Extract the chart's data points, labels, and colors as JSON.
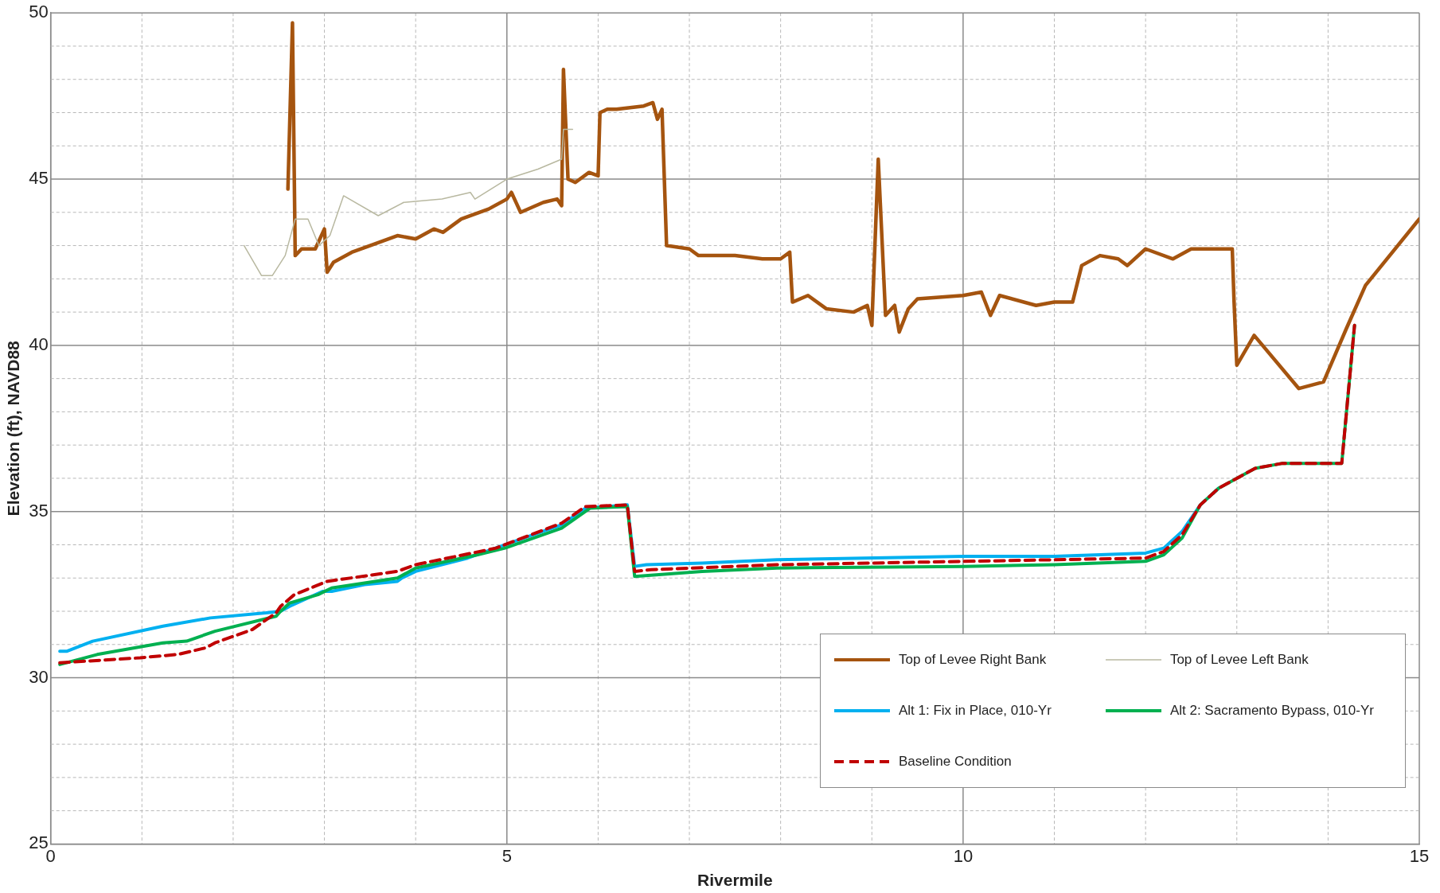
{
  "chart_data": {
    "type": "line",
    "xlabel": "Rivermile",
    "ylabel": "Elevation (ft), NAVD88",
    "xlim": [
      0,
      15
    ],
    "ylim": [
      25,
      50
    ],
    "xticks": [
      0,
      {
        "value": 1,
        "label": null
      },
      {
        "value": 2,
        "label": null
      },
      {
        "value": 3,
        "label": null
      },
      {
        "value": 4,
        "label": null
      },
      5,
      {
        "value": 6,
        "label": null
      },
      {
        "value": 7,
        "label": null
      },
      {
        "value": 8,
        "label": null
      },
      {
        "value": 9,
        "label": null
      },
      10,
      {
        "value": 11,
        "label": null
      },
      {
        "value": 12,
        "label": null
      },
      {
        "value": 13,
        "label": null
      },
      {
        "value": 14,
        "label": null
      },
      15
    ],
    "yticks": [
      25,
      {
        "value": 26,
        "label": null
      },
      {
        "value": 27,
        "label": null
      },
      {
        "value": 28,
        "label": null
      },
      {
        "value": 29,
        "label": null
      },
      30,
      {
        "value": 31,
        "label": null
      },
      {
        "value": 32,
        "label": null
      },
      {
        "value": 33,
        "label": null
      },
      {
        "value": 34,
        "label": null
      },
      35,
      {
        "value": 36,
        "label": null
      },
      {
        "value": 37,
        "label": null
      },
      {
        "value": 38,
        "label": null
      },
      {
        "value": 39,
        "label": null
      },
      40,
      {
        "value": 41,
        "label": null
      },
      {
        "value": 42,
        "label": null
      },
      {
        "value": 43,
        "label": null
      },
      {
        "value": 44,
        "label": null
      },
      45,
      {
        "value": 46,
        "label": null
      },
      {
        "value": 47,
        "label": null
      },
      {
        "value": 48,
        "label": null
      },
      {
        "value": 49,
        "label": null
      },
      50
    ],
    "grid": true,
    "legend": "bottom right",
    "marker": "none",
    "series": [
      {
        "name": "Top of Levee Right Bank",
        "color": "#a5540f",
        "line_style": "solid",
        "x": [
          2.6,
          2.65,
          2.68,
          2.75,
          2.9,
          3.0,
          3.03,
          3.1,
          3.3,
          3.5,
          3.8,
          4.0,
          4.2,
          4.3,
          4.5,
          4.8,
          5.0,
          5.05,
          5.15,
          5.4,
          5.55,
          5.6,
          5.62,
          5.67,
          5.75,
          5.9,
          6.0,
          6.02,
          6.1,
          6.2,
          6.5,
          6.6,
          6.65,
          6.7,
          6.75,
          7.0,
          7.1,
          7.5,
          7.8,
          8.0,
          8.1,
          8.13,
          8.3,
          8.5,
          8.8,
          8.95,
          9.0,
          9.07,
          9.15,
          9.25,
          9.3,
          9.4,
          9.5,
          10.0,
          10.2,
          10.3,
          10.4,
          10.8,
          11.0,
          11.2,
          11.3,
          11.5,
          11.7,
          11.8,
          12.0,
          12.3,
          12.5,
          12.8,
          12.95,
          12.97,
          13.0,
          13.19,
          13.68,
          13.95,
          14.2,
          14.41,
          15.0
        ],
        "values": [
          44.7,
          49.7,
          42.7,
          42.9,
          42.9,
          43.5,
          42.2,
          42.5,
          42.8,
          43.0,
          43.3,
          43.2,
          43.5,
          43.4,
          43.8,
          44.1,
          44.4,
          44.6,
          44.0,
          44.3,
          44.4,
          44.2,
          48.3,
          45.0,
          44.9,
          45.2,
          45.1,
          47.0,
          47.1,
          47.1,
          47.2,
          47.3,
          46.8,
          47.1,
          43.0,
          42.9,
          42.7,
          42.7,
          42.6,
          42.6,
          42.8,
          41.3,
          41.5,
          41.1,
          41.0,
          41.2,
          40.6,
          45.6,
          40.9,
          41.2,
          40.4,
          41.1,
          41.4,
          41.5,
          41.6,
          40.9,
          41.5,
          41.2,
          41.3,
          41.3,
          42.4,
          42.7,
          42.6,
          42.4,
          42.9,
          42.6,
          42.9,
          42.9,
          42.9,
          41.3,
          39.4,
          40.3,
          38.7,
          38.9,
          40.5,
          41.8,
          43.8
        ]
      },
      {
        "name": "Top of Levee Left Bank",
        "color": "#b8b8a0",
        "line_style": "solid",
        "x": [
          2.12,
          2.31,
          2.43,
          2.57,
          2.68,
          2.82,
          2.94,
          3.06,
          3.21,
          3.59,
          3.87,
          4.29,
          4.6,
          4.65,
          5.0,
          5.34,
          5.6,
          5.62,
          5.72
        ],
        "values": [
          43.0,
          42.1,
          42.1,
          42.7,
          43.8,
          43.8,
          43.0,
          43.3,
          44.5,
          43.9,
          44.3,
          44.4,
          44.6,
          44.4,
          45.0,
          45.3,
          45.6,
          46.5,
          46.5
        ]
      },
      {
        "name": "Alt 1: Fix in Place, 010-Yr",
        "color": "#00b0f0",
        "line_style": "solid",
        "x": [
          0.1,
          0.18,
          0.46,
          1.23,
          1.75,
          2.36,
          2.52,
          2.62,
          2.98,
          3.08,
          3.44,
          3.8,
          3.85,
          4.0,
          4.57,
          4.98,
          5.6,
          5.86,
          6.32,
          6.4,
          6.53,
          7.14,
          7.96,
          10.0,
          11.0,
          12.0,
          12.2,
          12.4,
          12.6,
          12.8
        ],
        "values": [
          30.8,
          30.8,
          31.1,
          31.55,
          31.8,
          31.95,
          32.0,
          32.15,
          32.6,
          32.6,
          32.8,
          32.9,
          33.0,
          33.2,
          33.6,
          34.0,
          34.6,
          35.1,
          35.2,
          33.35,
          33.4,
          33.45,
          33.55,
          33.65,
          33.65,
          33.75,
          33.9,
          34.4,
          35.2,
          35.7
        ]
      },
      {
        "name": "Alt 2: Sacramento Bypass, 010-Yr",
        "color": "#00b050",
        "line_style": "solid",
        "x": [
          0.1,
          0.51,
          1.23,
          1.49,
          1.8,
          2.47,
          2.52,
          2.62,
          2.93,
          3.08,
          3.8,
          4.0,
          4.68,
          4.98,
          5.6,
          5.91,
          6.32,
          6.4,
          7.14,
          7.96,
          10.0,
          11.0,
          12.0,
          12.2,
          12.4,
          12.6,
          12.8,
          13.0,
          13.2,
          13.5,
          14.15,
          14.29
        ],
        "values": [
          30.4,
          30.7,
          31.05,
          31.1,
          31.4,
          31.85,
          32.0,
          32.25,
          32.5,
          32.7,
          33.0,
          33.3,
          33.7,
          33.9,
          34.5,
          35.1,
          35.15,
          33.05,
          33.2,
          33.3,
          33.35,
          33.4,
          33.5,
          33.7,
          34.2,
          35.2,
          35.7,
          36.0,
          36.3,
          36.45,
          36.45,
          40.6
        ]
      },
      {
        "name": "Baseline Condition",
        "color": "#c00000",
        "line_style": "dashed",
        "x": [
          0.1,
          0.98,
          1.39,
          1.7,
          1.8,
          2.21,
          2.47,
          2.52,
          2.67,
          3.03,
          3.8,
          4.0,
          4.88,
          5.6,
          5.86,
          6.32,
          6.4,
          6.58,
          7.96,
          10.0,
          12.0,
          12.2,
          12.4,
          12.6,
          12.8,
          13.0,
          13.2,
          13.5,
          14.15,
          14.29
        ],
        "values": [
          30.45,
          30.6,
          30.7,
          30.9,
          31.05,
          31.45,
          31.95,
          32.15,
          32.5,
          32.9,
          33.2,
          33.4,
          33.9,
          34.65,
          35.15,
          35.2,
          33.2,
          33.25,
          33.4,
          33.5,
          33.6,
          33.8,
          34.3,
          35.2,
          35.7,
          36.0,
          36.3,
          36.45,
          36.45,
          40.6
        ]
      }
    ]
  }
}
